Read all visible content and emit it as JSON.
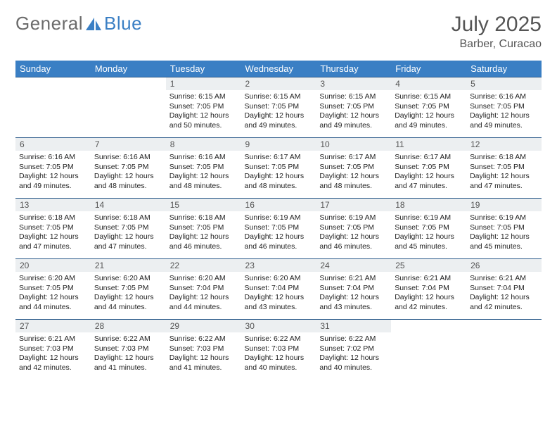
{
  "brand": {
    "word1": "General",
    "word2": "Blue"
  },
  "title": {
    "month": "July 2025",
    "location": "Barber, Curacao"
  },
  "colors": {
    "header_bg": "#3a7fc4",
    "header_text": "#ffffff",
    "daynum_bg": "#eceff1",
    "row_border": "#2a5a8a",
    "page_bg": "#ffffff",
    "text": "#333333"
  },
  "weekdays": [
    "Sunday",
    "Monday",
    "Tuesday",
    "Wednesday",
    "Thursday",
    "Friday",
    "Saturday"
  ],
  "grid": [
    [
      {
        "empty": true
      },
      {
        "empty": true
      },
      {
        "n": "1",
        "sr": "6:15 AM",
        "ss": "7:05 PM",
        "dl": "12 hours and 50 minutes."
      },
      {
        "n": "2",
        "sr": "6:15 AM",
        "ss": "7:05 PM",
        "dl": "12 hours and 49 minutes."
      },
      {
        "n": "3",
        "sr": "6:15 AM",
        "ss": "7:05 PM",
        "dl": "12 hours and 49 minutes."
      },
      {
        "n": "4",
        "sr": "6:15 AM",
        "ss": "7:05 PM",
        "dl": "12 hours and 49 minutes."
      },
      {
        "n": "5",
        "sr": "6:16 AM",
        "ss": "7:05 PM",
        "dl": "12 hours and 49 minutes."
      }
    ],
    [
      {
        "n": "6",
        "sr": "6:16 AM",
        "ss": "7:05 PM",
        "dl": "12 hours and 49 minutes."
      },
      {
        "n": "7",
        "sr": "6:16 AM",
        "ss": "7:05 PM",
        "dl": "12 hours and 48 minutes."
      },
      {
        "n": "8",
        "sr": "6:16 AM",
        "ss": "7:05 PM",
        "dl": "12 hours and 48 minutes."
      },
      {
        "n": "9",
        "sr": "6:17 AM",
        "ss": "7:05 PM",
        "dl": "12 hours and 48 minutes."
      },
      {
        "n": "10",
        "sr": "6:17 AM",
        "ss": "7:05 PM",
        "dl": "12 hours and 48 minutes."
      },
      {
        "n": "11",
        "sr": "6:17 AM",
        "ss": "7:05 PM",
        "dl": "12 hours and 47 minutes."
      },
      {
        "n": "12",
        "sr": "6:18 AM",
        "ss": "7:05 PM",
        "dl": "12 hours and 47 minutes."
      }
    ],
    [
      {
        "n": "13",
        "sr": "6:18 AM",
        "ss": "7:05 PM",
        "dl": "12 hours and 47 minutes."
      },
      {
        "n": "14",
        "sr": "6:18 AM",
        "ss": "7:05 PM",
        "dl": "12 hours and 47 minutes."
      },
      {
        "n": "15",
        "sr": "6:18 AM",
        "ss": "7:05 PM",
        "dl": "12 hours and 46 minutes."
      },
      {
        "n": "16",
        "sr": "6:19 AM",
        "ss": "7:05 PM",
        "dl": "12 hours and 46 minutes."
      },
      {
        "n": "17",
        "sr": "6:19 AM",
        "ss": "7:05 PM",
        "dl": "12 hours and 46 minutes."
      },
      {
        "n": "18",
        "sr": "6:19 AM",
        "ss": "7:05 PM",
        "dl": "12 hours and 45 minutes."
      },
      {
        "n": "19",
        "sr": "6:19 AM",
        "ss": "7:05 PM",
        "dl": "12 hours and 45 minutes."
      }
    ],
    [
      {
        "n": "20",
        "sr": "6:20 AM",
        "ss": "7:05 PM",
        "dl": "12 hours and 44 minutes."
      },
      {
        "n": "21",
        "sr": "6:20 AM",
        "ss": "7:05 PM",
        "dl": "12 hours and 44 minutes."
      },
      {
        "n": "22",
        "sr": "6:20 AM",
        "ss": "7:04 PM",
        "dl": "12 hours and 44 minutes."
      },
      {
        "n": "23",
        "sr": "6:20 AM",
        "ss": "7:04 PM",
        "dl": "12 hours and 43 minutes."
      },
      {
        "n": "24",
        "sr": "6:21 AM",
        "ss": "7:04 PM",
        "dl": "12 hours and 43 minutes."
      },
      {
        "n": "25",
        "sr": "6:21 AM",
        "ss": "7:04 PM",
        "dl": "12 hours and 42 minutes."
      },
      {
        "n": "26",
        "sr": "6:21 AM",
        "ss": "7:04 PM",
        "dl": "12 hours and 42 minutes."
      }
    ],
    [
      {
        "n": "27",
        "sr": "6:21 AM",
        "ss": "7:03 PM",
        "dl": "12 hours and 42 minutes."
      },
      {
        "n": "28",
        "sr": "6:22 AM",
        "ss": "7:03 PM",
        "dl": "12 hours and 41 minutes."
      },
      {
        "n": "29",
        "sr": "6:22 AM",
        "ss": "7:03 PM",
        "dl": "12 hours and 41 minutes."
      },
      {
        "n": "30",
        "sr": "6:22 AM",
        "ss": "7:03 PM",
        "dl": "12 hours and 40 minutes."
      },
      {
        "n": "31",
        "sr": "6:22 AM",
        "ss": "7:02 PM",
        "dl": "12 hours and 40 minutes."
      },
      {
        "empty": true
      },
      {
        "empty": true
      }
    ]
  ],
  "labels": {
    "sunrise": "Sunrise:",
    "sunset": "Sunset:",
    "daylight": "Daylight:"
  }
}
